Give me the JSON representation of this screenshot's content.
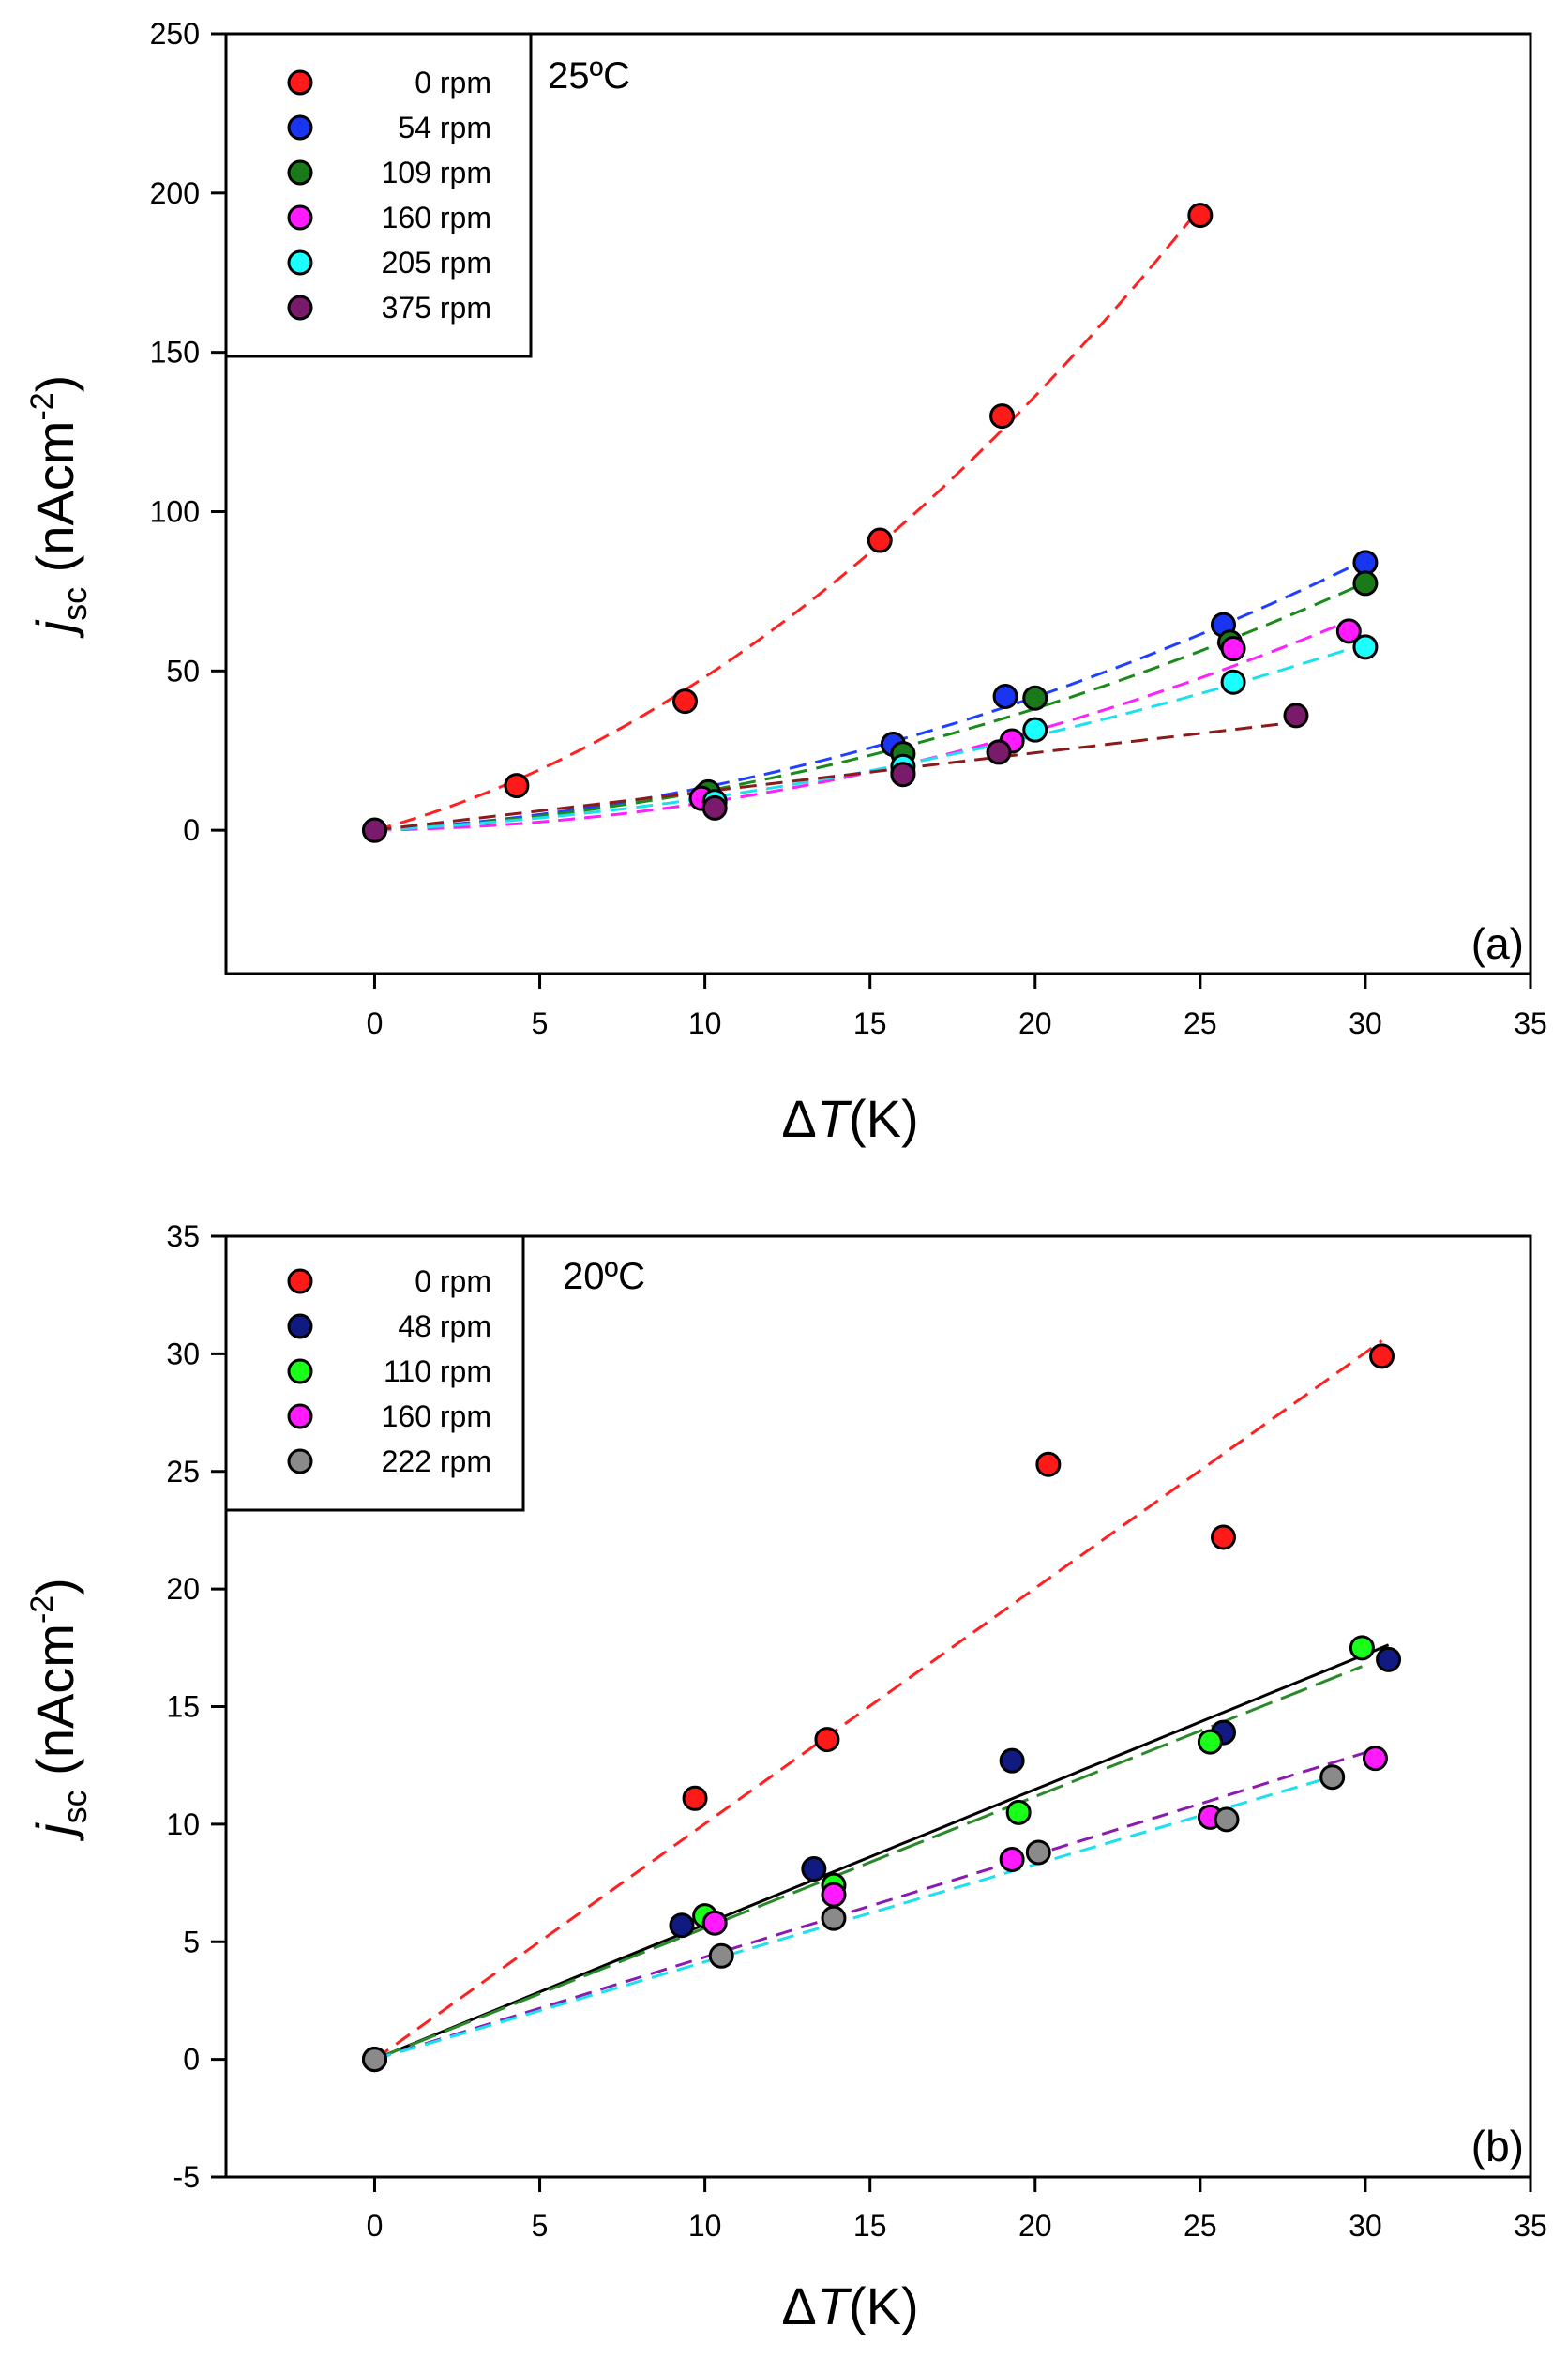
{
  "chart_data": [
    {
      "type": "scatter",
      "panel_label": "(a)",
      "temperature_label": "25ºC",
      "ylabel_main": "j",
      "ylabel_sub": "sc",
      "ylabel_unit": " (nAcm",
      "ylabel_sup": "-2",
      "ylabel_close": ")",
      "xlabel_delta": "Δ",
      "xlabel_var": "T",
      "xlabel_unit": "(K)",
      "xlim": [
        -4.5,
        35
      ],
      "ylim": [
        -45,
        250
      ],
      "xticks": [
        0,
        5,
        10,
        15,
        20,
        25,
        30,
        35
      ],
      "yticks": [
        0,
        50,
        100,
        150,
        200,
        250
      ],
      "legend_location": "top-left",
      "grid": false,
      "series": [
        {
          "name": "0 rpm",
          "marker_color": "#ff1a1a",
          "fit_color": "#ff2020",
          "fit": "quadratic",
          "x": [
            0,
            4.3,
            9.4,
            15.3,
            19.0,
            25.0
          ],
          "y": [
            0,
            14,
            40.5,
            91,
            130,
            193
          ]
        },
        {
          "name": "54 rpm",
          "marker_color": "#1a35f0",
          "fit_color": "#2040ff",
          "fit": "quadratic",
          "x": [
            10.0,
            15.7,
            19.1,
            25.7,
            30.0
          ],
          "y": [
            11,
            27,
            42,
            64.5,
            84
          ]
        },
        {
          "name": "109 rpm",
          "marker_color": "#1a7a1a",
          "fit_color": "#1a8a1a",
          "fit": "quadratic",
          "x": [
            10.1,
            16.0,
            20.0,
            25.9,
            30.0
          ],
          "y": [
            12,
            24,
            41.5,
            59,
            77.5
          ]
        },
        {
          "name": "160 rpm",
          "marker_color": "#ff1aff",
          "fit_color": "#ff20ff",
          "fit": "quadratic",
          "x": [
            9.9,
            16.0,
            19.3,
            26.0,
            29.5
          ],
          "y": [
            10,
            18,
            28,
            57,
            62.5
          ]
        },
        {
          "name": "205 rpm",
          "marker_color": "#1affff",
          "fit_color": "#1ae0f0",
          "fit": "quadratic",
          "x": [
            10.3,
            16.0,
            20.0,
            26.0,
            30.0
          ],
          "y": [
            9,
            20,
            31.5,
            46.5,
            57.5
          ]
        },
        {
          "name": "375 rpm",
          "marker_color": "#7a1a6a",
          "fit_color": "#8b1a1a",
          "fit": "linear",
          "x": [
            0,
            10.3,
            16.0,
            18.9,
            27.9
          ],
          "y": [
            0,
            7,
            17.5,
            24.5,
            36
          ]
        }
      ]
    },
    {
      "type": "scatter",
      "panel_label": "(b)",
      "temperature_label": "20ºC",
      "ylabel_main": "j",
      "ylabel_sub": "sc",
      "ylabel_unit": " (nAcm",
      "ylabel_sup": "-2",
      "ylabel_close": ")",
      "xlabel_delta": "Δ",
      "xlabel_var": "T",
      "xlabel_unit": "(K)",
      "xlim": [
        -4.5,
        35
      ],
      "ylim": [
        -5,
        35
      ],
      "xticks": [
        0,
        5,
        10,
        15,
        20,
        25,
        30,
        35
      ],
      "yticks": [
        -5,
        0,
        5,
        10,
        15,
        20,
        25,
        30,
        35
      ],
      "legend_location": "top-left",
      "grid": false,
      "series": [
        {
          "name": "0 rpm",
          "marker_color": "#ff1a1a",
          "fit_color": "#ff2020",
          "fit": "linear",
          "fit_dash": "dash",
          "x": [
            0,
            9.7,
            13.7,
            20.4,
            25.7,
            30.5
          ],
          "y": [
            0,
            11.1,
            13.6,
            25.3,
            22.2,
            29.9
          ]
        },
        {
          "name": "48 rpm",
          "marker_color": "#101a80",
          "fit_color": "#000000",
          "fit": "linear",
          "fit_dash": "solid",
          "x": [
            0,
            9.3,
            13.3,
            19.3,
            25.7,
            30.7
          ],
          "y": [
            0,
            5.7,
            8.1,
            12.7,
            13.9,
            17.0
          ]
        },
        {
          "name": "110 rpm",
          "marker_color": "#1aff1a",
          "fit_color": "#2a8a2a",
          "fit": "linear",
          "fit_dash": "longdash",
          "x": [
            0,
            10.0,
            13.9,
            19.5,
            25.3,
            29.9
          ],
          "y": [
            0,
            6.1,
            7.4,
            10.5,
            13.5,
            17.5
          ]
        },
        {
          "name": "160 rpm",
          "marker_color": "#ff1aff",
          "fit_color": "#8a1ab0",
          "fit": "linear",
          "fit_dash": "dash",
          "x": [
            0,
            10.3,
            13.9,
            19.3,
            25.3,
            30.3
          ],
          "y": [
            0,
            5.8,
            7.0,
            8.5,
            10.3,
            12.8
          ]
        },
        {
          "name": "222 rpm",
          "marker_color": "#8a8a8a",
          "fit_color": "#1ae0f0",
          "fit": "linear",
          "fit_dash": "dash",
          "x": [
            0,
            10.5,
            13.9,
            20.1,
            25.8,
            29.0
          ],
          "y": [
            0,
            4.4,
            6.0,
            8.8,
            10.2,
            12.0
          ]
        }
      ]
    }
  ]
}
